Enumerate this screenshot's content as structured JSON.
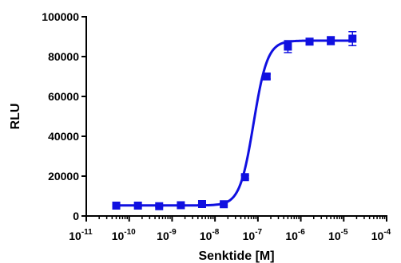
{
  "chart_data": {
    "type": "scatter",
    "xlabel": "Senktide [M]",
    "ylabel": "RLU",
    "x_scale": "log",
    "xlim": [
      1e-11,
      0.0001
    ],
    "ylim": [
      0,
      100000
    ],
    "x_ticks": [
      {
        "base": "10",
        "exp": "-11"
      },
      {
        "base": "10",
        "exp": "-10"
      },
      {
        "base": "10",
        "exp": "-9"
      },
      {
        "base": "10",
        "exp": "-8"
      },
      {
        "base": "10",
        "exp": "-7"
      },
      {
        "base": "10",
        "exp": "-6"
      },
      {
        "base": "10",
        "exp": "-5"
      },
      {
        "base": "10",
        "exp": "-4"
      }
    ],
    "y_ticks": [
      "0",
      "20000",
      "40000",
      "60000",
      "80000",
      "100000"
    ],
    "y_tick_values": [
      0,
      20000,
      40000,
      60000,
      80000,
      100000
    ],
    "grid": false,
    "series_color": "#1010e0",
    "series": [
      {
        "points": [
          {
            "x": 5e-11,
            "y": 5200,
            "err": 500
          },
          {
            "x": 1.6e-10,
            "y": 5200,
            "err": 400
          },
          {
            "x": 5e-10,
            "y": 4900,
            "err": 400
          },
          {
            "x": 1.6e-09,
            "y": 5400,
            "err": 500
          },
          {
            "x": 5e-09,
            "y": 6000,
            "err": 600
          },
          {
            "x": 1.6e-08,
            "y": 5900,
            "err": 500
          },
          {
            "x": 5e-08,
            "y": 19500,
            "err": 800
          },
          {
            "x": 1.6e-07,
            "y": 70000,
            "err": 1200
          },
          {
            "x": 5e-07,
            "y": 85000,
            "err": 3000
          },
          {
            "x": 1.6e-06,
            "y": 87500,
            "err": 1500
          },
          {
            "x": 5e-06,
            "y": 88000,
            "err": 2000
          },
          {
            "x": 1.6e-05,
            "y": 89000,
            "err": 3500
          }
        ],
        "fit": {
          "bottom": 5300,
          "top": 88000,
          "log_ec50": -7.1,
          "hill": 2.7
        }
      }
    ]
  }
}
